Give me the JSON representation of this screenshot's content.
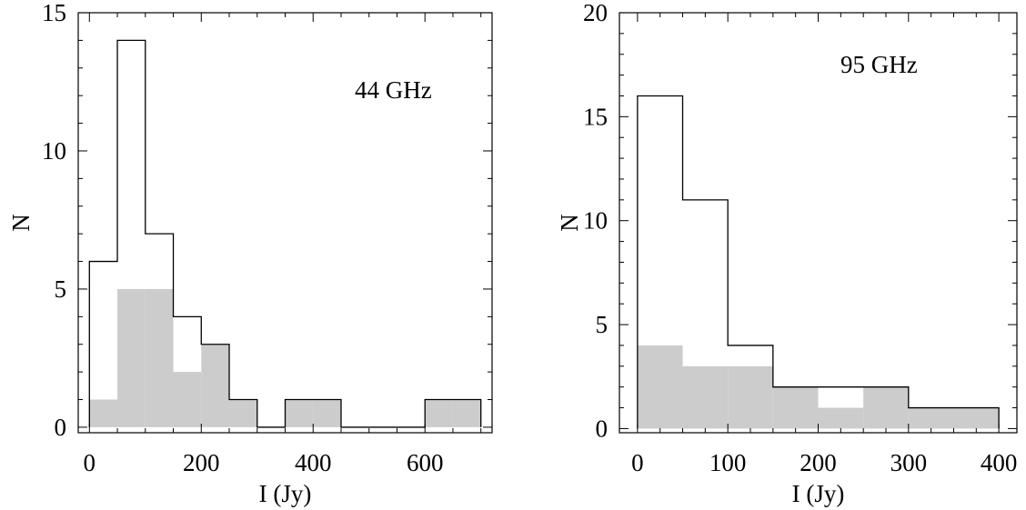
{
  "chart_data": [
    {
      "type": "bar",
      "annotation": "44 GHz",
      "xlabel": "I (Jy)",
      "ylabel": "N",
      "xlim": [
        -20,
        720
      ],
      "ylim": [
        -0.2,
        15
      ],
      "xticks": [
        0,
        200,
        400,
        600
      ],
      "yticks": [
        0,
        5,
        10,
        15
      ],
      "bin_width": 50,
      "bin_edges": [
        0,
        50,
        100,
        150,
        200,
        250,
        300,
        350,
        400,
        450,
        500,
        550,
        600,
        650,
        700
      ],
      "series": [
        {
          "style": "outline",
          "values": [
            6,
            14,
            7,
            4,
            3,
            1,
            0,
            1,
            1,
            0,
            0,
            0,
            1,
            1
          ]
        },
        {
          "style": "filled",
          "color": "#cccccc",
          "values": [
            1,
            5,
            5,
            2,
            3,
            1,
            0,
            1,
            1,
            0,
            0,
            0,
            1,
            1
          ]
        }
      ],
      "grid": false
    },
    {
      "type": "bar",
      "annotation": "95 GHz",
      "xlabel": "I (Jy)",
      "ylabel": "N",
      "xlim": [
        -20,
        420
      ],
      "ylim": [
        -0.2,
        20
      ],
      "xticks": [
        0,
        100,
        200,
        300,
        400
      ],
      "yticks": [
        0,
        5,
        10,
        15,
        20
      ],
      "bin_width": 50,
      "bin_edges": [
        0,
        50,
        100,
        150,
        200,
        250,
        300,
        350,
        400
      ],
      "series": [
        {
          "style": "outline",
          "values": [
            16,
            11,
            4,
            2,
            2,
            2,
            1,
            1
          ]
        },
        {
          "style": "filled",
          "color": "#cccccc",
          "values": [
            4,
            3,
            3,
            2,
            1,
            2,
            1,
            1
          ]
        }
      ],
      "grid": false
    }
  ]
}
